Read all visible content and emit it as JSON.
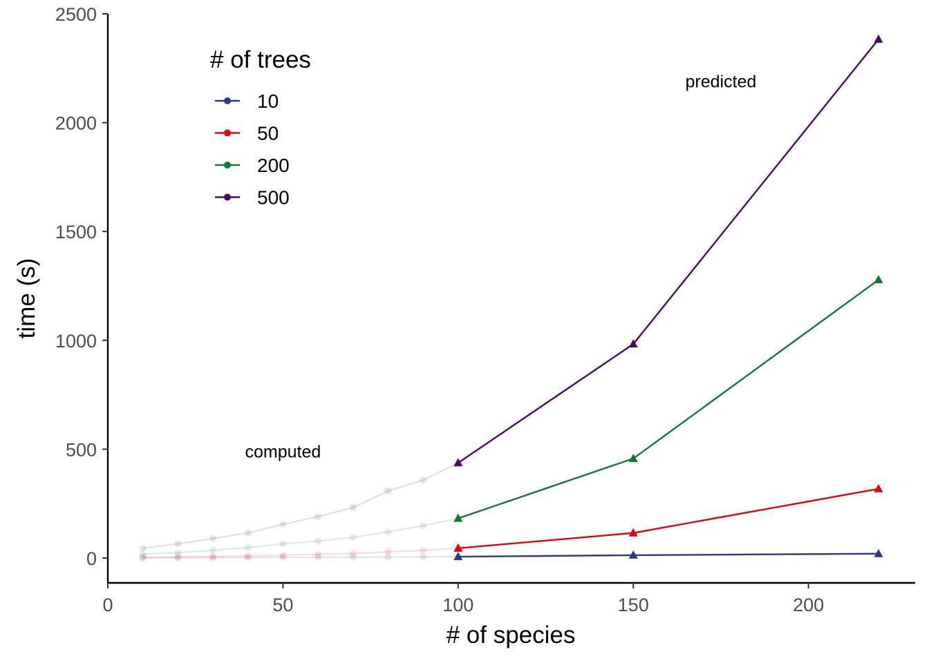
{
  "chart_data": {
    "type": "line",
    "xlabel": "# of species",
    "ylabel": "time (s)",
    "xlim": [
      0,
      232
    ],
    "ylim": [
      -110,
      2500
    ],
    "xticks": [
      0,
      50,
      100,
      150,
      200
    ],
    "yticks": [
      0,
      500,
      1000,
      1500,
      2000,
      2500
    ],
    "grid": false,
    "legend": {
      "title": "# of trees",
      "placement": "top-left"
    },
    "annotations": [
      {
        "text": "computed",
        "x": 50,
        "y": 490
      },
      {
        "text": "predicted",
        "x": 175,
        "y": 2190
      }
    ],
    "series": [
      {
        "name": "10",
        "color": "#2b3a83",
        "computed": {
          "x": [
            10,
            20,
            30,
            40,
            50,
            60,
            70,
            80,
            90,
            100
          ],
          "y": [
            0.5,
            1,
            1.5,
            2,
            2.5,
            3,
            3.5,
            4.5,
            5,
            6
          ]
        },
        "predicted": {
          "x": [
            100,
            150,
            220
          ],
          "y": [
            6,
            13,
            20
          ]
        }
      },
      {
        "name": "50",
        "color": "#e3000f",
        "computed": {
          "x": [
            10,
            20,
            30,
            40,
            50,
            60,
            70,
            80,
            90,
            100
          ],
          "y": [
            3,
            5,
            7,
            10,
            13,
            17,
            21,
            28,
            35,
            45
          ]
        },
        "predicted": {
          "x": [
            100,
            150,
            220
          ],
          "y": [
            45,
            115,
            318
          ]
        }
      },
      {
        "name": "200",
        "color": "#117733",
        "computed": {
          "x": [
            10,
            20,
            30,
            40,
            50,
            60,
            70,
            80,
            90,
            100
          ],
          "y": [
            18,
            25,
            35,
            48,
            65,
            78,
            95,
            120,
            148,
            182
          ]
        },
        "predicted": {
          "x": [
            100,
            150,
            220
          ],
          "y": [
            182,
            457,
            1278
          ]
        }
      },
      {
        "name": "500",
        "color": "#4b0a62",
        "computed": {
          "x": [
            10,
            20,
            30,
            40,
            50,
            60,
            70,
            80,
            90,
            100
          ],
          "y": [
            45,
            65,
            90,
            115,
            155,
            190,
            232,
            308,
            358,
            437
          ]
        },
        "predicted": {
          "x": [
            100,
            150,
            220
          ],
          "y": [
            437,
            983,
            2383
          ]
        }
      }
    ]
  }
}
